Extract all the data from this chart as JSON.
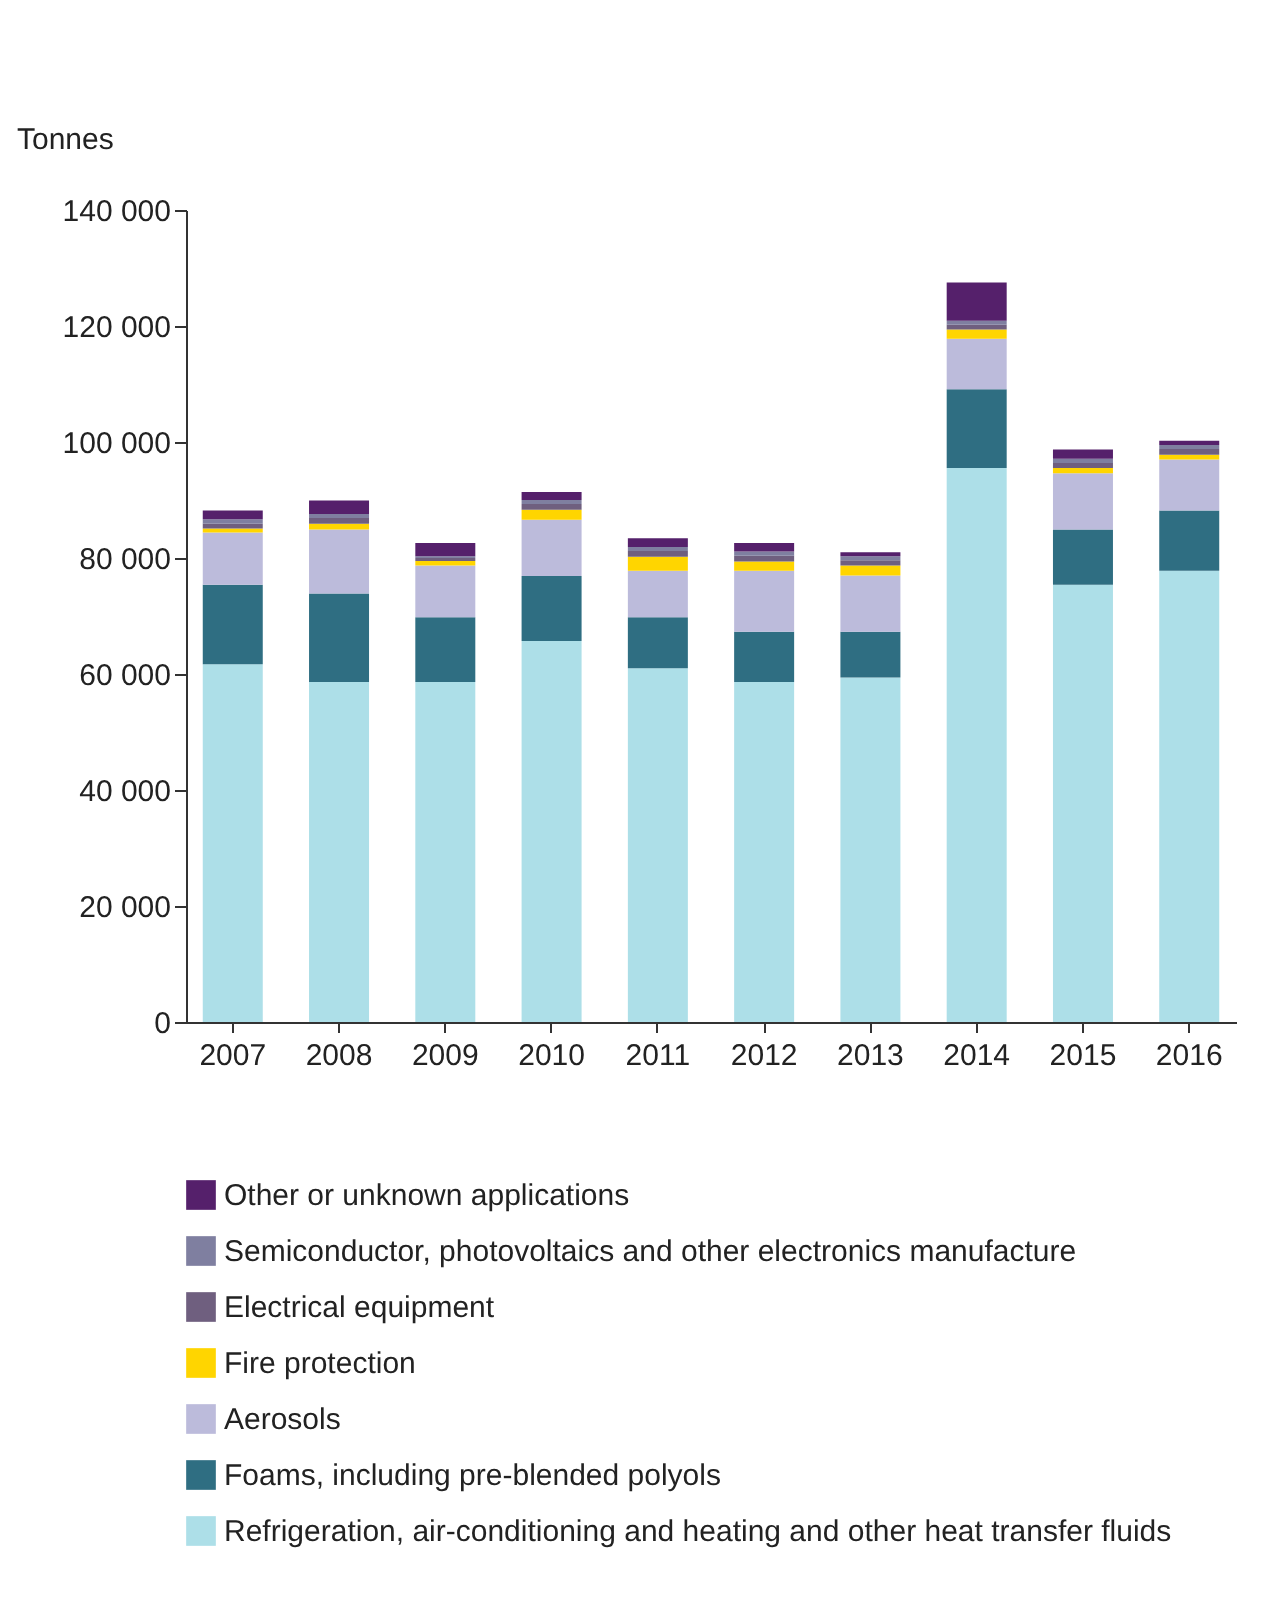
{
  "chart_data": {
    "type": "bar",
    "stacked": true,
    "ylabel": "Tonnes",
    "categories": [
      "2007",
      "2008",
      "2009",
      "2010",
      "2011",
      "2012",
      "2013",
      "2014",
      "2015",
      "2016"
    ],
    "series": [
      {
        "name": "Refrigeration, air-conditioning and heating and other heat transfer fluids",
        "color": "#addfe8",
        "values": [
          61700,
          58600,
          58600,
          65700,
          61000,
          58600,
          59400,
          95500,
          75400,
          77800
        ]
      },
      {
        "name": "Foams, including pre-blended polyols",
        "color": "#2f6e82",
        "values": [
          13700,
          15300,
          11200,
          11200,
          8800,
          8700,
          7900,
          13600,
          9500,
          10400
        ]
      },
      {
        "name": "Aerosols",
        "color": "#bcbbdb",
        "values": [
          9000,
          11000,
          8900,
          9700,
          8000,
          10500,
          9700,
          8700,
          9700,
          8800
        ]
      },
      {
        "name": "Fire protection",
        "color": "#ffd500",
        "values": [
          700,
          1000,
          800,
          1700,
          2400,
          1600,
          1700,
          1600,
          900,
          800
        ]
      },
      {
        "name": "Electrical equipment",
        "color": "#6f5f7f",
        "values": [
          800,
          1000,
          500,
          1000,
          1000,
          1000,
          900,
          800,
          900,
          1000
        ]
      },
      {
        "name": "Semiconductor, photovoltaics and other electronics manufacture",
        "color": "#7f7fa0",
        "values": [
          800,
          700,
          300,
          700,
          700,
          700,
          700,
          700,
          700,
          700
        ]
      },
      {
        "name": "Other or unknown applications",
        "color": "#55206b",
        "values": [
          1500,
          2300,
          2300,
          1400,
          1500,
          1500,
          700,
          6600,
          1600,
          700
        ]
      }
    ],
    "ylim": [
      0,
      140000
    ],
    "yticks": [
      {
        "value": 0,
        "label": "0"
      },
      {
        "value": 20000,
        "label": "20 000"
      },
      {
        "value": 40000,
        "label": "40 000"
      },
      {
        "value": 60000,
        "label": "60 000"
      },
      {
        "value": 80000,
        "label": "80 000"
      },
      {
        "value": 100000,
        "label": "100 000"
      },
      {
        "value": 120000,
        "label": "120 000"
      },
      {
        "value": 140000,
        "label": "140 000"
      }
    ],
    "legend": "bottom"
  }
}
